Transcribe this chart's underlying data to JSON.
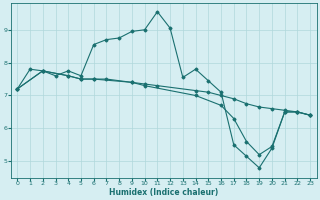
{
  "xlabel": "Humidex (Indice chaleur)",
  "background_color": "#d6eef2",
  "grid_color": "#b0d8dc",
  "line_color": "#1a7070",
  "xlim": [
    -0.5,
    23.5
  ],
  "ylim": [
    4.5,
    9.8
  ],
  "xticks": [
    0,
    1,
    2,
    3,
    4,
    5,
    6,
    7,
    8,
    9,
    10,
    11,
    12,
    13,
    14,
    15,
    16,
    17,
    18,
    19,
    20,
    21,
    22,
    23
  ],
  "yticks": [
    5,
    6,
    7,
    8,
    9
  ],
  "lines": [
    {
      "x": [
        0,
        1,
        2,
        3,
        4,
        5,
        6,
        7,
        8,
        9,
        10,
        11,
        12,
        13,
        14,
        15,
        16,
        17,
        18,
        19,
        20,
        21,
        22,
        23
      ],
      "y": [
        7.2,
        7.8,
        7.75,
        7.6,
        7.75,
        7.6,
        8.55,
        8.7,
        8.75,
        8.95,
        9.0,
        9.55,
        9.05,
        7.55,
        7.8,
        7.45,
        7.1,
        5.5,
        5.15,
        4.8,
        5.4,
        6.5,
        6.5,
        6.4
      ]
    },
    {
      "x": [
        0,
        2,
        4,
        5,
        6,
        7,
        9,
        10,
        11,
        14,
        15,
        16,
        17,
        18,
        19,
        20,
        21,
        22,
        23
      ],
      "y": [
        7.2,
        7.75,
        7.6,
        7.5,
        7.5,
        7.5,
        7.4,
        7.35,
        7.3,
        7.15,
        7.1,
        7.0,
        6.9,
        6.75,
        6.65,
        6.6,
        6.55,
        6.5,
        6.4
      ]
    },
    {
      "x": [
        0,
        2,
        4,
        5,
        6,
        9,
        10,
        14,
        16,
        17,
        18,
        19,
        20,
        21,
        22,
        23
      ],
      "y": [
        7.2,
        7.75,
        7.6,
        7.5,
        7.5,
        7.4,
        7.3,
        7.0,
        6.7,
        6.3,
        5.6,
        5.2,
        5.45,
        6.5,
        6.5,
        6.4
      ]
    }
  ]
}
